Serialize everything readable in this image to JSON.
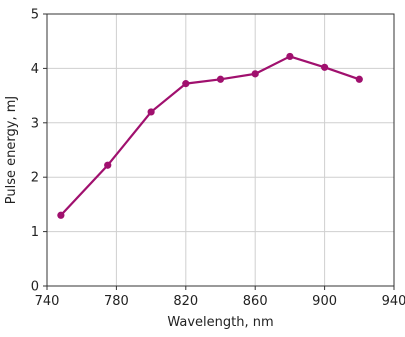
{
  "chart_data": {
    "type": "line",
    "title": "",
    "xlabel": "Wavelength, nm",
    "ylabel": "Pulse energy, mJ",
    "xlim": [
      740,
      940
    ],
    "ylim": [
      0,
      5
    ],
    "xticks": [
      740,
      780,
      820,
      860,
      900,
      940
    ],
    "yticks": [
      0,
      1,
      2,
      3,
      4,
      5
    ],
    "grid": true,
    "legend": "none",
    "series": [
      {
        "color": "#a0106e",
        "marker": "circle",
        "x": [
          748,
          775,
          800,
          820,
          840,
          860,
          880,
          900,
          920
        ],
        "y": [
          1.3,
          2.22,
          3.2,
          3.72,
          3.8,
          3.9,
          4.22,
          4.02,
          3.8
        ]
      }
    ]
  }
}
